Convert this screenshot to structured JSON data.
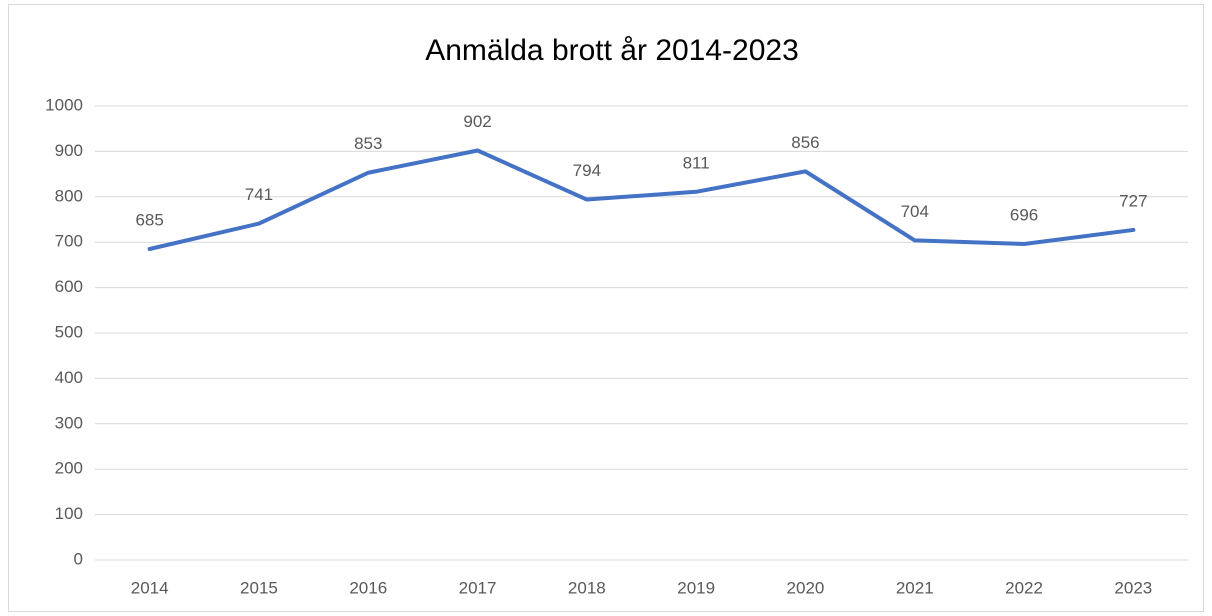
{
  "chart_data": {
    "type": "line",
    "title": "Anmälda brott år 2014-2023",
    "categories": [
      "2014",
      "2015",
      "2016",
      "2017",
      "2018",
      "2019",
      "2020",
      "2021",
      "2022",
      "2023"
    ],
    "series": [
      {
        "name": "Anmälda brott",
        "color": "#4472c4",
        "values": [
          685,
          741,
          853,
          902,
          794,
          811,
          856,
          704,
          696,
          727
        ]
      }
    ],
    "ylim": [
      0,
      1000
    ],
    "yticks": [
      0,
      100,
      200,
      300,
      400,
      500,
      600,
      700,
      800,
      900,
      1000
    ],
    "grid": true,
    "data_labels": true
  }
}
